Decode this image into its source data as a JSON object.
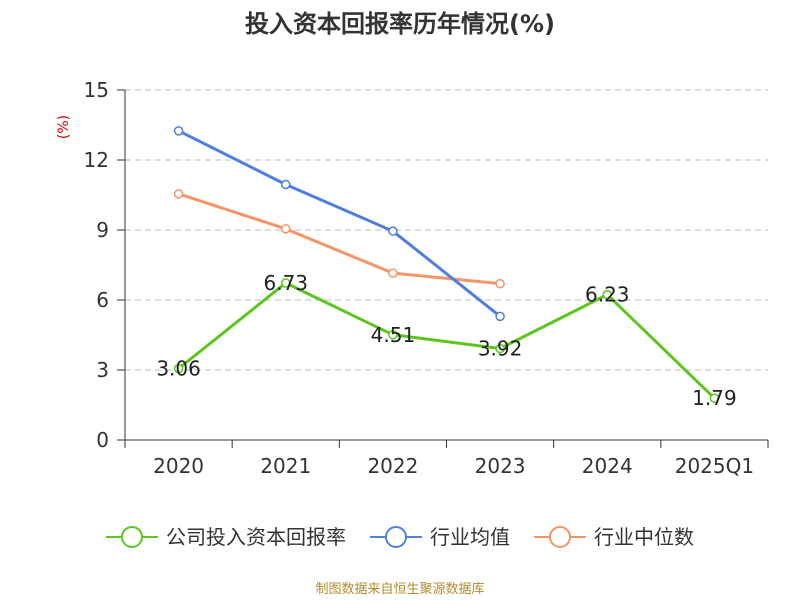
{
  "chart_data": {
    "type": "line",
    "title": "投入资本回报率历年情况(%)",
    "ylabel": "(%)",
    "categories": [
      "2020",
      "2021",
      "2022",
      "2023",
      "2024",
      "2025Q1"
    ],
    "ylim": [
      0,
      15
    ],
    "yticks": [
      0,
      3,
      6,
      9,
      12,
      15
    ],
    "grid": true,
    "legend_position": "bottom",
    "series": [
      {
        "name": "公司投入资本回报率",
        "color": "#5cc61f",
        "values": [
          3.06,
          6.73,
          4.51,
          3.92,
          6.23,
          1.79
        ],
        "labels": [
          "3.06",
          "6.73",
          "4.51",
          "3.92",
          "6.23",
          "1.79"
        ]
      },
      {
        "name": "行业均值",
        "color": "#4e7fdc",
        "values": [
          13.25,
          10.95,
          8.95,
          5.3,
          null,
          null
        ]
      },
      {
        "name": "行业中位数",
        "color": "#f59565",
        "values": [
          10.55,
          9.05,
          7.15,
          6.7,
          null,
          null
        ]
      }
    ]
  },
  "source_note": "制图数据来自恒生聚源数据库"
}
